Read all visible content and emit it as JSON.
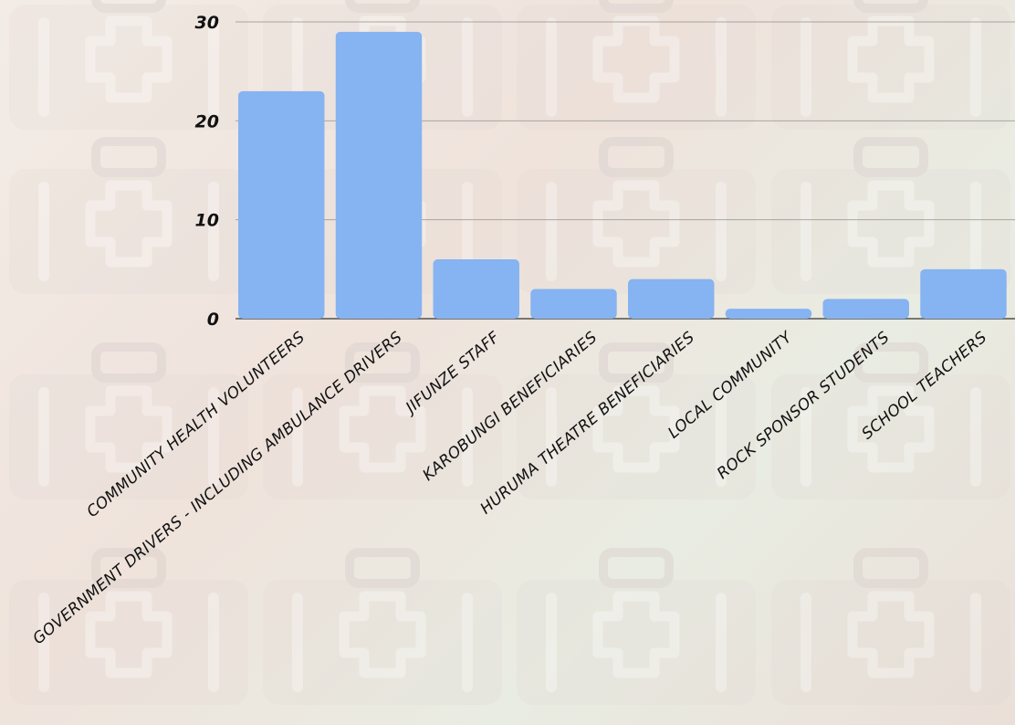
{
  "colors": {
    "bar": "#86b3f1",
    "tile": "#d9cfcc"
  },
  "chart_data": {
    "type": "bar",
    "title": "",
    "xlabel": "",
    "ylabel": "",
    "ylim": [
      0,
      30
    ],
    "yticks": [
      "0",
      "10",
      "20",
      "30"
    ],
    "grid": true,
    "categories": [
      "COMMUNITY HEALTH VOLUNTEERS",
      "GOVERNMENT DRIVERS - INCLUDING AMBULANCE DRIVERS",
      "JIFUNZE STAFF",
      "KAROBUNGI BENEFICIARIES",
      "HURUMA THEATRE BENEFICIARIES",
      "LOCAL COMMUNITY",
      "ROCK SPONSOR STUDENTS",
      "SCHOOL TEACHERS"
    ],
    "values": [
      23,
      29,
      6,
      3,
      4,
      1,
      2,
      5
    ]
  }
}
